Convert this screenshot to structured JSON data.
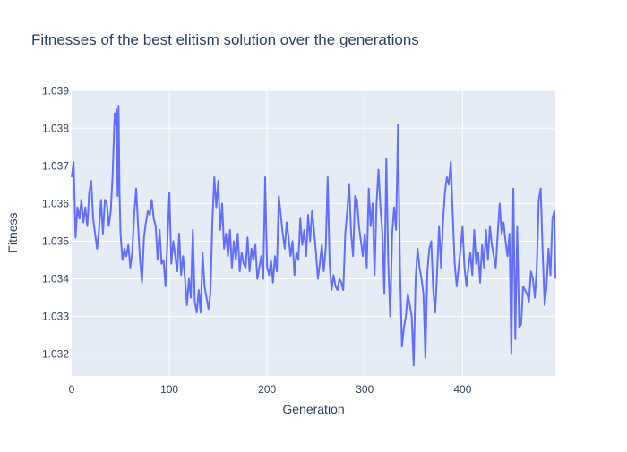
{
  "chart_data": {
    "type": "line",
    "title": "Fitnesses of the best elitism solution over the generations",
    "xlabel": "Generation",
    "ylabel": "Fitness",
    "xlim": [
      0,
      495
    ],
    "ylim": [
      1.03142,
      1.03903
    ],
    "x_ticks": [
      0,
      100,
      200,
      300,
      400
    ],
    "x_tick_labels": [
      "0",
      "100",
      "200",
      "300",
      "400"
    ],
    "y_ticks": [
      1.032,
      1.033,
      1.034,
      1.035,
      1.036,
      1.037,
      1.038,
      1.039
    ],
    "y_tick_labels": [
      "1.032",
      "1.033",
      "1.034",
      "1.035",
      "1.036",
      "1.037",
      "1.038",
      "1.039"
    ],
    "grid": true,
    "legend": "none",
    "colors": {
      "line": "#636efa",
      "plot_background": "#e5ecf6",
      "grid": "#ffffff",
      "text": "#2a3f5f"
    },
    "series": [
      {
        "points": [
          [
            0,
            1.0367
          ],
          [
            2,
            1.0371
          ],
          [
            4,
            1.0351
          ],
          [
            6,
            1.0359
          ],
          [
            8,
            1.0356
          ],
          [
            10,
            1.0361
          ],
          [
            12,
            1.0355
          ],
          [
            14,
            1.0359
          ],
          [
            16,
            1.0354
          ],
          [
            18,
            1.0363
          ],
          [
            20,
            1.0366
          ],
          [
            22,
            1.0356
          ],
          [
            24,
            1.0352
          ],
          [
            26,
            1.0348
          ],
          [
            28,
            1.0353
          ],
          [
            30,
            1.0361
          ],
          [
            32,
            1.0352
          ],
          [
            34,
            1.0361
          ],
          [
            36,
            1.036
          ],
          [
            38,
            1.0354
          ],
          [
            40,
            1.0358
          ],
          [
            42,
            1.0368
          ],
          [
            44,
            1.0384
          ],
          [
            45,
            1.0381
          ],
          [
            46,
            1.0385
          ],
          [
            47,
            1.0362
          ],
          [
            48,
            1.0386
          ],
          [
            49,
            1.0363
          ],
          [
            50,
            1.0352
          ],
          [
            52,
            1.0345
          ],
          [
            54,
            1.0348
          ],
          [
            56,
            1.0346
          ],
          [
            58,
            1.0349
          ],
          [
            60,
            1.0343
          ],
          [
            62,
            1.0347
          ],
          [
            64,
            1.0357
          ],
          [
            66,
            1.0364
          ],
          [
            68,
            1.0354
          ],
          [
            70,
            1.0345
          ],
          [
            72,
            1.0339
          ],
          [
            74,
            1.0351
          ],
          [
            76,
            1.0355
          ],
          [
            78,
            1.0358
          ],
          [
            80,
            1.0357
          ],
          [
            82,
            1.0361
          ],
          [
            84,
            1.0356
          ],
          [
            86,
            1.0354
          ],
          [
            88,
            1.0345
          ],
          [
            90,
            1.0353
          ],
          [
            92,
            1.0344
          ],
          [
            94,
            1.0345
          ],
          [
            96,
            1.0338
          ],
          [
            98,
            1.035
          ],
          [
            100,
            1.0363
          ],
          [
            102,
            1.0344
          ],
          [
            104,
            1.035
          ],
          [
            106,
            1.0346
          ],
          [
            108,
            1.0342
          ],
          [
            110,
            1.0352
          ],
          [
            112,
            1.0341
          ],
          [
            114,
            1.0346
          ],
          [
            116,
            1.034
          ],
          [
            118,
            1.0333
          ],
          [
            120,
            1.034
          ],
          [
            122,
            1.0335
          ],
          [
            124,
            1.0353
          ],
          [
            126,
            1.0334
          ],
          [
            128,
            1.0331
          ],
          [
            130,
            1.0337
          ],
          [
            132,
            1.0331
          ],
          [
            134,
            1.0347
          ],
          [
            136,
            1.0338
          ],
          [
            138,
            1.0335
          ],
          [
            140,
            1.0332
          ],
          [
            142,
            1.0336
          ],
          [
            144,
            1.0355
          ],
          [
            146,
            1.0367
          ],
          [
            148,
            1.0359
          ],
          [
            150,
            1.0366
          ],
          [
            152,
            1.0353
          ],
          [
            154,
            1.036
          ],
          [
            156,
            1.0348
          ],
          [
            158,
            1.0352
          ],
          [
            160,
            1.0346
          ],
          [
            162,
            1.0353
          ],
          [
            164,
            1.0343
          ],
          [
            166,
            1.035
          ],
          [
            168,
            1.0345
          ],
          [
            170,
            1.0352
          ],
          [
            172,
            1.0342
          ],
          [
            174,
            1.0347
          ],
          [
            176,
            1.0344
          ],
          [
            178,
            1.0343
          ],
          [
            180,
            1.0351
          ],
          [
            182,
            1.0342
          ],
          [
            184,
            1.0348
          ],
          [
            186,
            1.0345
          ],
          [
            188,
            1.0349
          ],
          [
            190,
            1.034
          ],
          [
            192,
            1.0343
          ],
          [
            194,
            1.0346
          ],
          [
            196,
            1.034
          ],
          [
            198,
            1.0367
          ],
          [
            200,
            1.0343
          ],
          [
            202,
            1.0341
          ],
          [
            204,
            1.0345
          ],
          [
            206,
            1.0339
          ],
          [
            208,
            1.0346
          ],
          [
            210,
            1.0342
          ],
          [
            212,
            1.0362
          ],
          [
            214,
            1.0357
          ],
          [
            216,
            1.0352
          ],
          [
            218,
            1.0348
          ],
          [
            220,
            1.0355
          ],
          [
            222,
            1.0351
          ],
          [
            224,
            1.0346
          ],
          [
            226,
            1.035
          ],
          [
            228,
            1.0341
          ],
          [
            230,
            1.0347
          ],
          [
            232,
            1.0345
          ],
          [
            234,
            1.0356
          ],
          [
            236,
            1.0349
          ],
          [
            238,
            1.0353
          ],
          [
            240,
            1.0346
          ],
          [
            242,
            1.0357
          ],
          [
            244,
            1.035
          ],
          [
            246,
            1.0358
          ],
          [
            248,
            1.0353
          ],
          [
            250,
            1.0347
          ],
          [
            252,
            1.034
          ],
          [
            254,
            1.0344
          ],
          [
            256,
            1.0349
          ],
          [
            258,
            1.0342
          ],
          [
            260,
            1.0348
          ],
          [
            262,
            1.0367
          ],
          [
            264,
            1.0344
          ],
          [
            266,
            1.0337
          ],
          [
            268,
            1.0341
          ],
          [
            270,
            1.0338
          ],
          [
            272,
            1.0337
          ],
          [
            274,
            1.034
          ],
          [
            276,
            1.0339
          ],
          [
            278,
            1.0337
          ],
          [
            280,
            1.0352
          ],
          [
            282,
            1.0358
          ],
          [
            284,
            1.0365
          ],
          [
            286,
            1.0352
          ],
          [
            288,
            1.0346
          ],
          [
            290,
            1.0362
          ],
          [
            292,
            1.0361
          ],
          [
            294,
            1.0354
          ],
          [
            296,
            1.035
          ],
          [
            298,
            1.0346
          ],
          [
            300,
            1.0352
          ],
          [
            302,
            1.0343
          ],
          [
            304,
            1.0364
          ],
          [
            306,
            1.0354
          ],
          [
            308,
            1.036
          ],
          [
            310,
            1.0341
          ],
          [
            312,
            1.036
          ],
          [
            314,
            1.0369
          ],
          [
            316,
            1.0359
          ],
          [
            318,
            1.0352
          ],
          [
            320,
            1.0336
          ],
          [
            322,
            1.0372
          ],
          [
            324,
            1.0344
          ],
          [
            326,
            1.033
          ],
          [
            328,
            1.0352
          ],
          [
            330,
            1.0359
          ],
          [
            332,
            1.0353
          ],
          [
            334,
            1.0381
          ],
          [
            336,
            1.0343
          ],
          [
            338,
            1.0322
          ],
          [
            340,
            1.0327
          ],
          [
            342,
            1.033
          ],
          [
            344,
            1.0336
          ],
          [
            346,
            1.0333
          ],
          [
            348,
            1.033
          ],
          [
            350,
            1.0317
          ],
          [
            352,
            1.034
          ],
          [
            354,
            1.0348
          ],
          [
            356,
            1.0343
          ],
          [
            358,
            1.034
          ],
          [
            360,
            1.0336
          ],
          [
            362,
            1.0319
          ],
          [
            364,
            1.0342
          ],
          [
            366,
            1.0348
          ],
          [
            368,
            1.035
          ],
          [
            370,
            1.0337
          ],
          [
            372,
            1.0331
          ],
          [
            374,
            1.0342
          ],
          [
            376,
            1.0354
          ],
          [
            378,
            1.0343
          ],
          [
            380,
            1.0355
          ],
          [
            382,
            1.0363
          ],
          [
            384,
            1.0367
          ],
          [
            386,
            1.0365
          ],
          [
            388,
            1.0371
          ],
          [
            390,
            1.0357
          ],
          [
            392,
            1.0344
          ],
          [
            394,
            1.0338
          ],
          [
            396,
            1.0343
          ],
          [
            398,
            1.0348
          ],
          [
            400,
            1.0354
          ],
          [
            402,
            1.0343
          ],
          [
            404,
            1.0338
          ],
          [
            406,
            1.0343
          ],
          [
            408,
            1.0347
          ],
          [
            410,
            1.0341
          ],
          [
            412,
            1.0353
          ],
          [
            414,
            1.0344
          ],
          [
            416,
            1.0347
          ],
          [
            418,
            1.0339
          ],
          [
            420,
            1.0349
          ],
          [
            422,
            1.0343
          ],
          [
            424,
            1.0353
          ],
          [
            426,
            1.0345
          ],
          [
            428,
            1.0354
          ],
          [
            430,
            1.0349
          ],
          [
            432,
            1.0346
          ],
          [
            434,
            1.0343
          ],
          [
            436,
            1.0352
          ],
          [
            438,
            1.036
          ],
          [
            440,
            1.0352
          ],
          [
            442,
            1.0355
          ],
          [
            444,
            1.035
          ],
          [
            446,
            1.0346
          ],
          [
            448,
            1.0352
          ],
          [
            450,
            1.032
          ],
          [
            452,
            1.0364
          ],
          [
            454,
            1.0324
          ],
          [
            456,
            1.0354
          ],
          [
            458,
            1.0327
          ],
          [
            460,
            1.0328
          ],
          [
            462,
            1.0338
          ],
          [
            464,
            1.0337
          ],
          [
            466,
            1.0336
          ],
          [
            468,
            1.0334
          ],
          [
            470,
            1.0342
          ],
          [
            472,
            1.034
          ],
          [
            474,
            1.0335
          ],
          [
            476,
            1.0343
          ],
          [
            478,
            1.0361
          ],
          [
            480,
            1.0364
          ],
          [
            482,
            1.0347
          ],
          [
            484,
            1.0333
          ],
          [
            486,
            1.0338
          ],
          [
            488,
            1.0348
          ],
          [
            490,
            1.0341
          ],
          [
            492,
            1.0356
          ],
          [
            494,
            1.0358
          ],
          [
            495,
            1.034
          ]
        ]
      }
    ]
  }
}
